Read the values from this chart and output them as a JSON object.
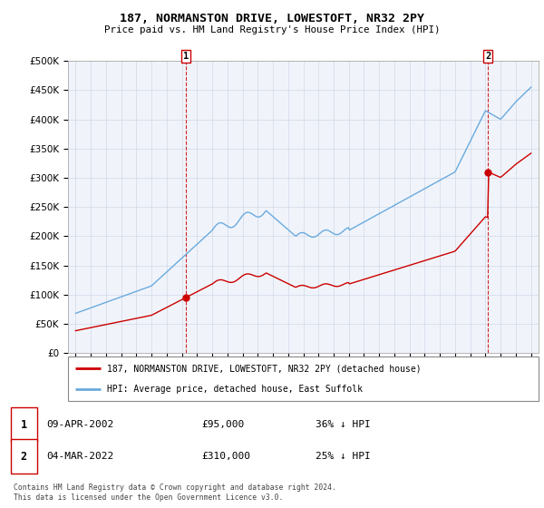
{
  "title": "187, NORMANSTON DRIVE, LOWESTOFT, NR32 2PY",
  "subtitle": "Price paid vs. HM Land Registry's House Price Index (HPI)",
  "legend_line1": "187, NORMANSTON DRIVE, LOWESTOFT, NR32 2PY (detached house)",
  "legend_line2": "HPI: Average price, detached house, East Suffolk",
  "transaction1_date": "09-APR-2002",
  "transaction1_price": "£95,000",
  "transaction1_hpi": "36% ↓ HPI",
  "transaction2_date": "04-MAR-2022",
  "transaction2_price": "£310,000",
  "transaction2_hpi": "25% ↓ HPI",
  "footer": "Contains HM Land Registry data © Crown copyright and database right 2024.\nThis data is licensed under the Open Government Licence v3.0.",
  "transaction1_x": 2002.27,
  "transaction1_y": 95000,
  "transaction2_x": 2022.17,
  "transaction2_y": 310000,
  "hpi_color": "#6aaadd",
  "price_color": "#cc0000",
  "vline_color": "#cc0000",
  "ylim": [
    0,
    500000
  ],
  "xlim": [
    1994.5,
    2025.5
  ],
  "yticks": [
    0,
    50000,
    100000,
    150000,
    200000,
    250000,
    300000,
    350000,
    400000,
    450000,
    500000
  ],
  "xtick_years": [
    1995,
    1996,
    1997,
    1998,
    1999,
    2000,
    2001,
    2002,
    2003,
    2004,
    2005,
    2006,
    2007,
    2008,
    2009,
    2010,
    2011,
    2012,
    2013,
    2014,
    2015,
    2016,
    2017,
    2018,
    2019,
    2020,
    2021,
    2022,
    2023,
    2024,
    2025
  ]
}
